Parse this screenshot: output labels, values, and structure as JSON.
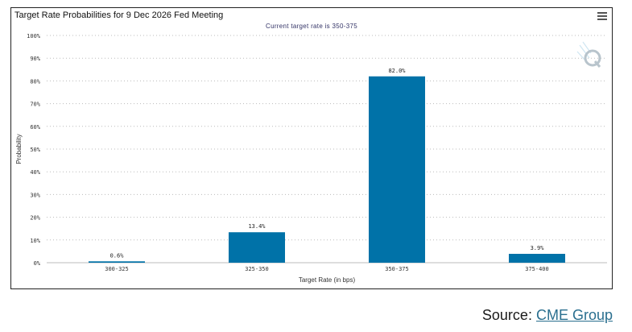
{
  "chart_data": {
    "type": "bar",
    "title": "Target Rate Probabilities for 9 Dec 2026 Fed Meeting",
    "subtitle": "Current target rate is 350-375",
    "xlabel": "Target Rate (in bps)",
    "ylabel": "Probability",
    "categories": [
      "300-325",
      "325-350",
      "350-375",
      "375-400"
    ],
    "values": [
      0.6,
      13.4,
      82.0,
      3.9
    ],
    "data_labels": [
      "0.6%",
      "13.4%",
      "82.0%",
      "3.9%"
    ],
    "ylim": [
      0,
      100
    ],
    "yticks": [
      0,
      10,
      20,
      30,
      40,
      50,
      60,
      70,
      80,
      90,
      100
    ],
    "ytick_labels": [
      "0%",
      "10%",
      "20%",
      "30%",
      "40%",
      "50%",
      "60%",
      "70%",
      "80%",
      "90%",
      "100%"
    ],
    "bar_color": "#0072a8",
    "grid": true,
    "grid_style": "dotted"
  },
  "source": {
    "prefix": "Source:",
    "link_text": "CME Group"
  },
  "icons": {
    "menu": "hamburger-menu-icon",
    "watermark": "q-logo-icon"
  }
}
